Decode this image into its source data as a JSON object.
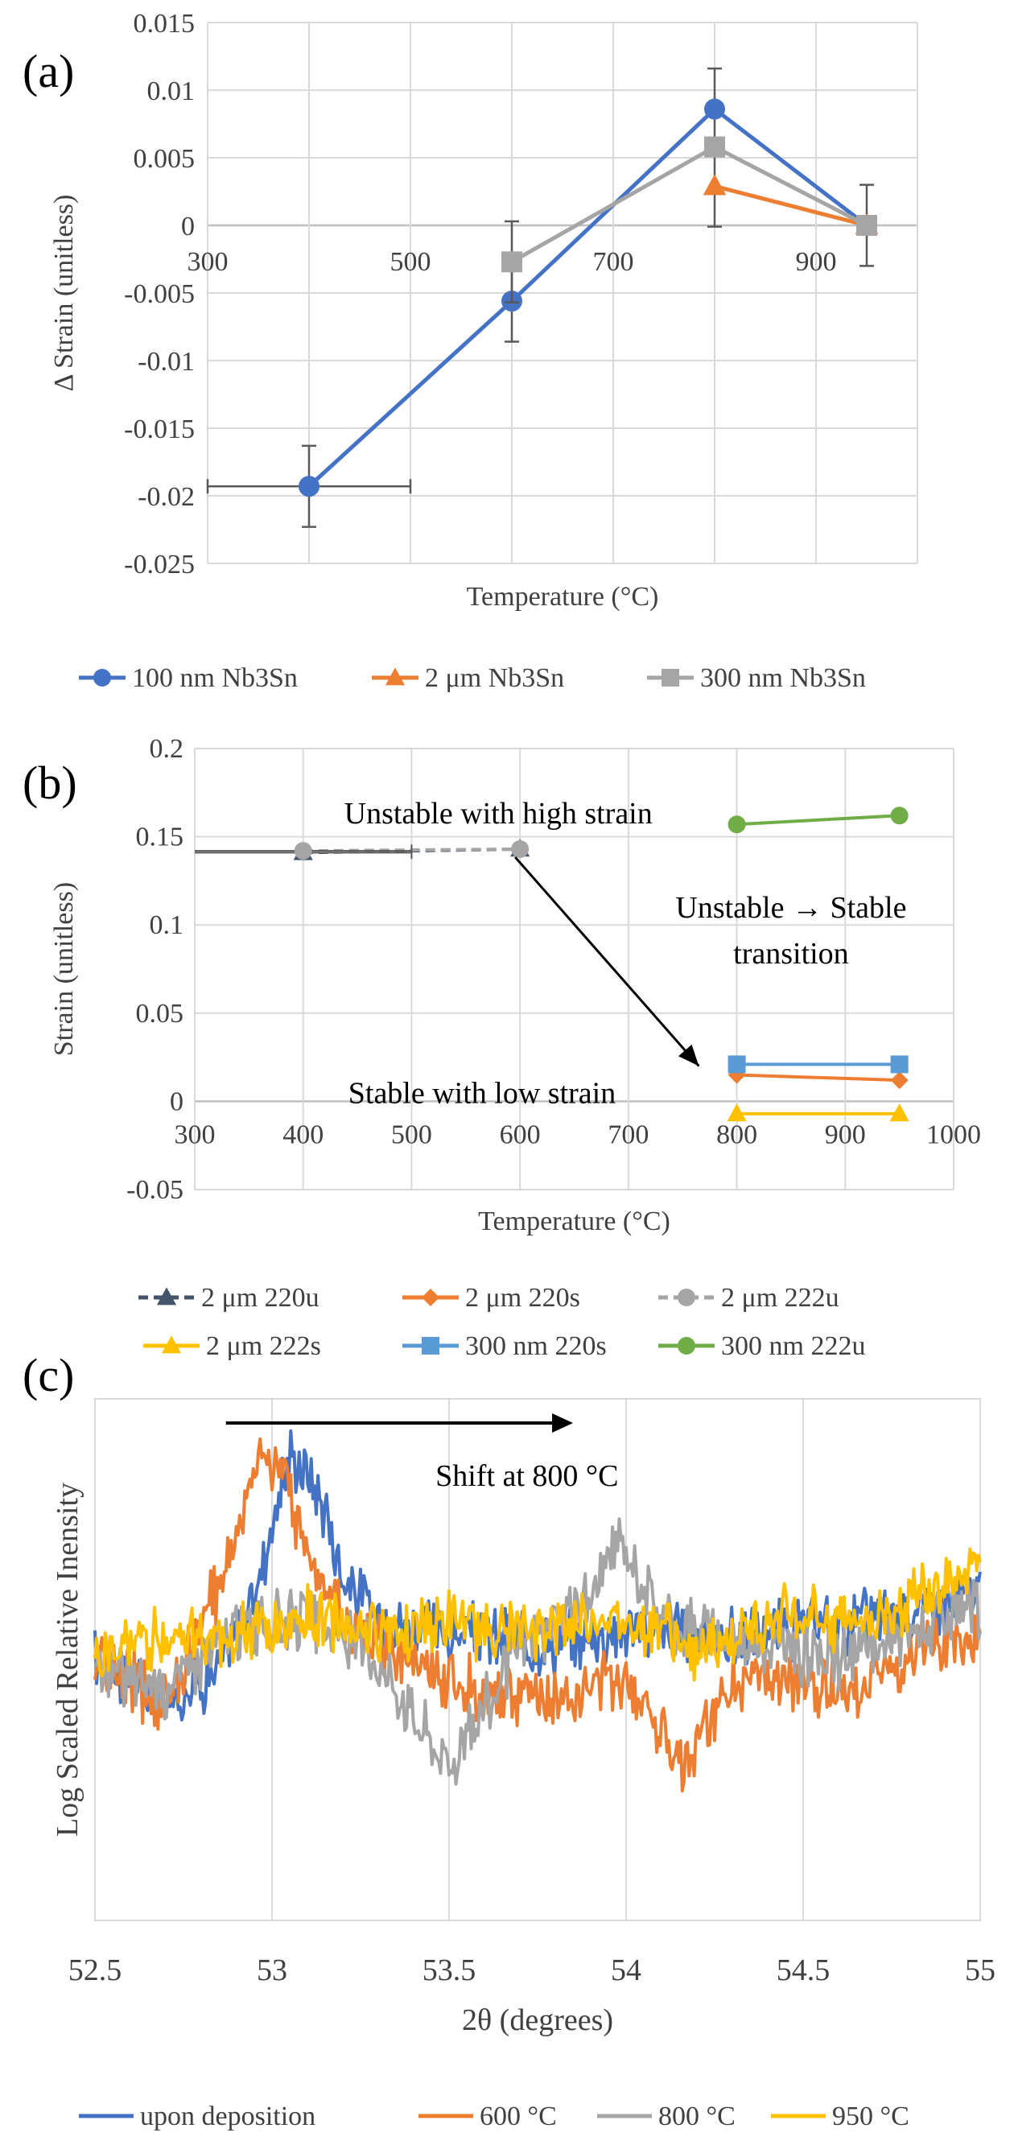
{
  "chart_data": [
    {
      "panel": "(a)",
      "type": "line",
      "title": "",
      "xlabel": "Temperature (°C)",
      "ylabel": "Δ Strain (unitless)",
      "xlim": [
        300,
        1000
      ],
      "ylim": [
        -0.025,
        0.015
      ],
      "x_ticks": [
        "300",
        "500",
        "700",
        "900"
      ],
      "y_ticks": [
        "0.015",
        "0.01",
        "0.005",
        "0",
        "-0.005",
        "-0.01",
        "-0.015",
        "-0.02",
        "-0.025"
      ],
      "grid": true,
      "legend_position": "bottom",
      "series": [
        {
          "name": "100 nm Nb3Sn",
          "color": "#4472C4",
          "marker": "circle",
          "x": [
            400,
            600,
            800,
            950
          ],
          "y": [
            -0.0193,
            -0.0056,
            0.0086,
            0.0
          ],
          "y_error": [
            0.003,
            0.003,
            0.003,
            0.003
          ],
          "x_error": [
            100,
            0,
            0,
            0
          ]
        },
        {
          "name": "2 μm Nb3Sn",
          "color": "#ED7D31",
          "marker": "triangle",
          "x": [
            800,
            950
          ],
          "y": [
            0.0029,
            0.0
          ],
          "y_error": [
            0.003,
            0.0
          ],
          "x_error": [
            0,
            0
          ]
        },
        {
          "name": "300 nm Nb3Sn",
          "color": "#A5A5A5",
          "marker": "square",
          "x": [
            600,
            800,
            950
          ],
          "y": [
            -0.0027,
            0.0058,
            0.0
          ],
          "y_error": [
            0.003,
            0.0,
            0.0
          ],
          "x_error": [
            0,
            0,
            0
          ]
        }
      ]
    },
    {
      "panel": "(b)",
      "type": "line",
      "title": "",
      "xlabel": "Temperature (°C)",
      "ylabel": "Strain (unitless)",
      "xlim": [
        300,
        1000
      ],
      "ylim": [
        -0.05,
        0.2
      ],
      "x_ticks": [
        "300",
        "400",
        "500",
        "600",
        "700",
        "800",
        "900",
        "1000"
      ],
      "y_ticks": [
        "0.2",
        "0.15",
        "0.1",
        "0.05",
        "0",
        "-0.05"
      ],
      "grid": true,
      "legend_position": "bottom",
      "annotations": [
        "Unstable with high strain",
        "Unstable → Stable",
        "transition",
        "Stable with low strain"
      ],
      "series": [
        {
          "name": "2 μm 220u",
          "color": "#44546A",
          "marker": "triangle",
          "dashed": true,
          "x": [
            400,
            600
          ],
          "y": [
            0.141,
            0.143
          ],
          "x_error": [
            100,
            0
          ]
        },
        {
          "name": "2 μm 220s",
          "color": "#ED7D31",
          "marker": "diamond",
          "dashed": false,
          "x": [
            800,
            950
          ],
          "y": [
            0.015,
            0.012
          ],
          "x_error": [
            0,
            0
          ]
        },
        {
          "name": "2 μm 222u",
          "color": "#A5A5A5",
          "marker": "circle",
          "dashed": true,
          "x": [
            400,
            600
          ],
          "y": [
            0.142,
            0.143
          ],
          "x_error": [
            100,
            0
          ]
        },
        {
          "name": "2 μm 222s",
          "color": "#FFC000",
          "marker": "triangle",
          "dashed": false,
          "x": [
            800,
            950
          ],
          "y": [
            -0.007,
            -0.007
          ],
          "x_error": [
            0,
            0
          ]
        },
        {
          "name": "300 nm 220s",
          "color": "#5B9BD5",
          "marker": "square",
          "dashed": false,
          "x": [
            800,
            950
          ],
          "y": [
            0.021,
            0.021
          ],
          "x_error": [
            0,
            0
          ]
        },
        {
          "name": "300 nm 222u",
          "color": "#70AD47",
          "marker": "circle",
          "dashed": false,
          "x": [
            800,
            950
          ],
          "y": [
            0.157,
            0.162
          ],
          "x_error": [
            0,
            0
          ]
        }
      ]
    },
    {
      "panel": "(c)",
      "type": "line",
      "title": "",
      "xlabel": "2θ (degrees)",
      "ylabel": "Log Scaled Relative Inensity",
      "xlim": [
        52.5,
        55
      ],
      "ylim": [
        0,
        1
      ],
      "x_ticks": [
        "52.5",
        "53",
        "53.5",
        "54",
        "54.5",
        "55"
      ],
      "grid": true,
      "legend_position": "bottom",
      "annotations": [
        "Shift at 800 °C"
      ],
      "series": [
        {
          "name": "upon deposition",
          "color": "#4472C4",
          "x": [
            52.5,
            52.7,
            52.85,
            52.95,
            53.0,
            53.05,
            53.1,
            53.15,
            53.2,
            53.3,
            53.5,
            53.8,
            54.0,
            54.3,
            54.6,
            55.0
          ],
          "y": [
            0.5,
            0.42,
            0.48,
            0.62,
            0.76,
            0.89,
            0.86,
            0.79,
            0.66,
            0.58,
            0.55,
            0.53,
            0.56,
            0.54,
            0.57,
            0.62
          ]
        },
        {
          "name": "600 °C",
          "color": "#ED7D31",
          "x": [
            52.5,
            52.7,
            52.8,
            52.9,
            52.97,
            53.03,
            53.1,
            53.2,
            53.35,
            53.6,
            53.8,
            54.0,
            54.17,
            54.3,
            54.6,
            55.0
          ],
          "y": [
            0.5,
            0.42,
            0.56,
            0.74,
            0.92,
            0.84,
            0.72,
            0.58,
            0.5,
            0.44,
            0.42,
            0.47,
            0.3,
            0.46,
            0.44,
            0.55
          ]
        },
        {
          "name": "800 °C",
          "color": "#A5A5A5",
          "x": [
            52.5,
            52.7,
            52.9,
            53.1,
            53.3,
            53.5,
            53.7,
            53.9,
            53.98,
            54.1,
            54.3,
            54.6,
            55.0
          ],
          "y": [
            0.48,
            0.45,
            0.56,
            0.58,
            0.5,
            0.3,
            0.52,
            0.62,
            0.73,
            0.58,
            0.54,
            0.5,
            0.6
          ]
        },
        {
          "name": "950 °C",
          "color": "#FFC000",
          "x": [
            52.5,
            52.7,
            52.9,
            53.1,
            53.3,
            53.5,
            53.7,
            53.9,
            54.1,
            54.2,
            54.4,
            54.7,
            55.0
          ],
          "y": [
            0.5,
            0.55,
            0.54,
            0.58,
            0.56,
            0.57,
            0.55,
            0.58,
            0.57,
            0.5,
            0.58,
            0.58,
            0.69
          ]
        }
      ]
    }
  ]
}
